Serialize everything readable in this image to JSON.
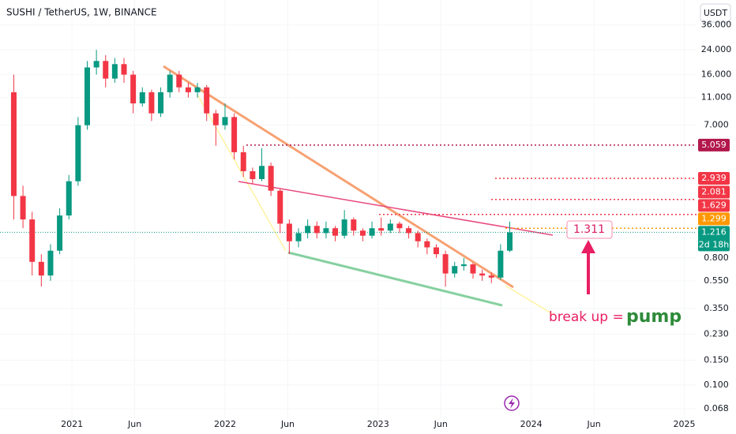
{
  "header": {
    "symbol": "SUSHI / TetherUS, 1W, BINANCE",
    "currency": "USDT"
  },
  "chart_data": {
    "type": "candlestick",
    "log_scale": true,
    "up_color": "#089981",
    "down_color": "#f23645",
    "xlim": [
      2020.53,
      2025.08
    ],
    "ylim": [
      0.0582,
      54.2
    ],
    "xticks": [
      {
        "value": 2021,
        "label": "2021"
      },
      {
        "value": 2021.41,
        "label": "Jun"
      },
      {
        "value": 2022,
        "label": "2022"
      },
      {
        "value": 2022.41,
        "label": "Jun"
      },
      {
        "value": 2023,
        "label": "2023"
      },
      {
        "value": 2023.41,
        "label": "Jun"
      },
      {
        "value": 2024,
        "label": "2024"
      },
      {
        "value": 2024.41,
        "label": "Jun"
      },
      {
        "value": 2025,
        "label": "2025"
      }
    ],
    "yticks": [
      {
        "value": 36,
        "label": "36.000"
      },
      {
        "value": 24,
        "label": "24.000"
      },
      {
        "value": 16,
        "label": "16.000"
      },
      {
        "value": 11,
        "label": "11.000"
      },
      {
        "value": 7,
        "label": "7.000"
      },
      {
        "value": 0.8,
        "label": "0.800"
      },
      {
        "value": 0.55,
        "label": "0.550"
      },
      {
        "value": 0.35,
        "label": "0.350"
      },
      {
        "value": 0.23,
        "label": "0.230"
      },
      {
        "value": 0.15,
        "label": "0.150"
      },
      {
        "value": 0.1,
        "label": "0.100"
      },
      {
        "value": 0.068,
        "label": "0.068"
      }
    ],
    "x": [
      2020.62,
      2020.68,
      2020.74,
      2020.8,
      2020.86,
      2020.92,
      2020.98,
      2021.04,
      2021.1,
      2021.16,
      2021.22,
      2021.28,
      2021.34,
      2021.4,
      2021.46,
      2021.52,
      2021.58,
      2021.64,
      2021.7,
      2021.76,
      2021.82,
      2021.88,
      2021.94,
      2022.0,
      2022.06,
      2022.12,
      2022.18,
      2022.24,
      2022.3,
      2022.36,
      2022.42,
      2022.48,
      2022.54,
      2022.6,
      2022.66,
      2022.72,
      2022.78,
      2022.84,
      2022.9,
      2022.96,
      2023.02,
      2023.08,
      2023.14,
      2023.2,
      2023.26,
      2023.32,
      2023.38,
      2023.44,
      2023.5,
      2023.56,
      2023.62,
      2023.68,
      2023.74,
      2023.8,
      2023.86
    ],
    "open": [
      12,
      2.2,
      1.5,
      0.75,
      0.6,
      0.9,
      1.6,
      2.8,
      7,
      18,
      20,
      15,
      19,
      16,
      10,
      12,
      8.5,
      12,
      16,
      13,
      12,
      13,
      8.5,
      7,
      8,
      4.5,
      3.3,
      2.9,
      3.6,
      2.4,
      1.4,
      1.05,
      1.2,
      1.35,
      1.2,
      1.3,
      1.15,
      1.5,
      1.25,
      1.15,
      1.3,
      1.25,
      1.4,
      1.3,
      1.2,
      1.05,
      0.95,
      0.85,
      0.62,
      0.7,
      0.72,
      0.62,
      0.6,
      0.58,
      0.9
    ],
    "high": [
      16,
      2.6,
      1.7,
      0.85,
      1.0,
      1.8,
      3.1,
      8,
      20,
      24,
      22,
      21,
      21,
      17,
      13,
      12.5,
      13,
      17,
      17,
      14,
      14,
      13.5,
      9,
      10,
      8.5,
      5,
      3.5,
      4.8,
      3.8,
      2.5,
      1.5,
      1.3,
      1.5,
      1.45,
      1.45,
      1.35,
      1.75,
      1.55,
      1.3,
      1.45,
      1.55,
      1.5,
      1.45,
      1.35,
      1.25,
      1.1,
      1.0,
      0.9,
      0.75,
      0.8,
      0.74,
      0.66,
      0.63,
      1.0,
      1.45
    ],
    "low": [
      1.5,
      1.3,
      0.6,
      0.5,
      0.55,
      0.85,
      1.5,
      2.6,
      6.5,
      16,
      13,
      14,
      14,
      8.5,
      9.5,
      7.5,
      8,
      11,
      12,
      11,
      11,
      7.5,
      5,
      6.5,
      4,
      3,
      2.7,
      2.8,
      2.2,
      1.2,
      0.85,
      0.95,
      1.1,
      1.1,
      1.1,
      1.05,
      1.1,
      1.15,
      1.05,
      1.1,
      1.15,
      1.2,
      1.2,
      1.1,
      0.95,
      0.85,
      0.8,
      0.5,
      0.58,
      0.65,
      0.57,
      0.55,
      0.53,
      0.56,
      0.88
    ],
    "close": [
      2.2,
      1.5,
      0.75,
      0.6,
      0.9,
      1.6,
      2.8,
      7,
      18,
      20,
      15,
      19,
      16,
      10,
      12,
      8.5,
      12,
      16,
      13,
      12,
      13,
      8.5,
      7,
      8,
      4.5,
      3.3,
      2.9,
      3.6,
      2.4,
      1.4,
      1.05,
      1.2,
      1.35,
      1.2,
      1.3,
      1.15,
      1.5,
      1.25,
      1.15,
      1.3,
      1.25,
      1.4,
      1.3,
      1.2,
      1.05,
      0.95,
      0.85,
      0.62,
      0.7,
      0.72,
      0.62,
      0.6,
      0.58,
      0.9,
      1.216
    ],
    "price_levels": [
      {
        "value": 5.059,
        "color": "#b2184b"
      },
      {
        "value": 2.939,
        "color": "#f23645"
      },
      {
        "value": 2.081,
        "color": "#f23645"
      },
      {
        "value": 1.629,
        "color": "#f23645"
      },
      {
        "value": 1.299,
        "color": "#ff9800"
      }
    ],
    "last_price": {
      "value": 1.216,
      "countdown": "2d 18h",
      "color": "#089981"
    },
    "annotations": {
      "level": "1.311",
      "note": "break up =",
      "emphasis": "pump"
    }
  }
}
